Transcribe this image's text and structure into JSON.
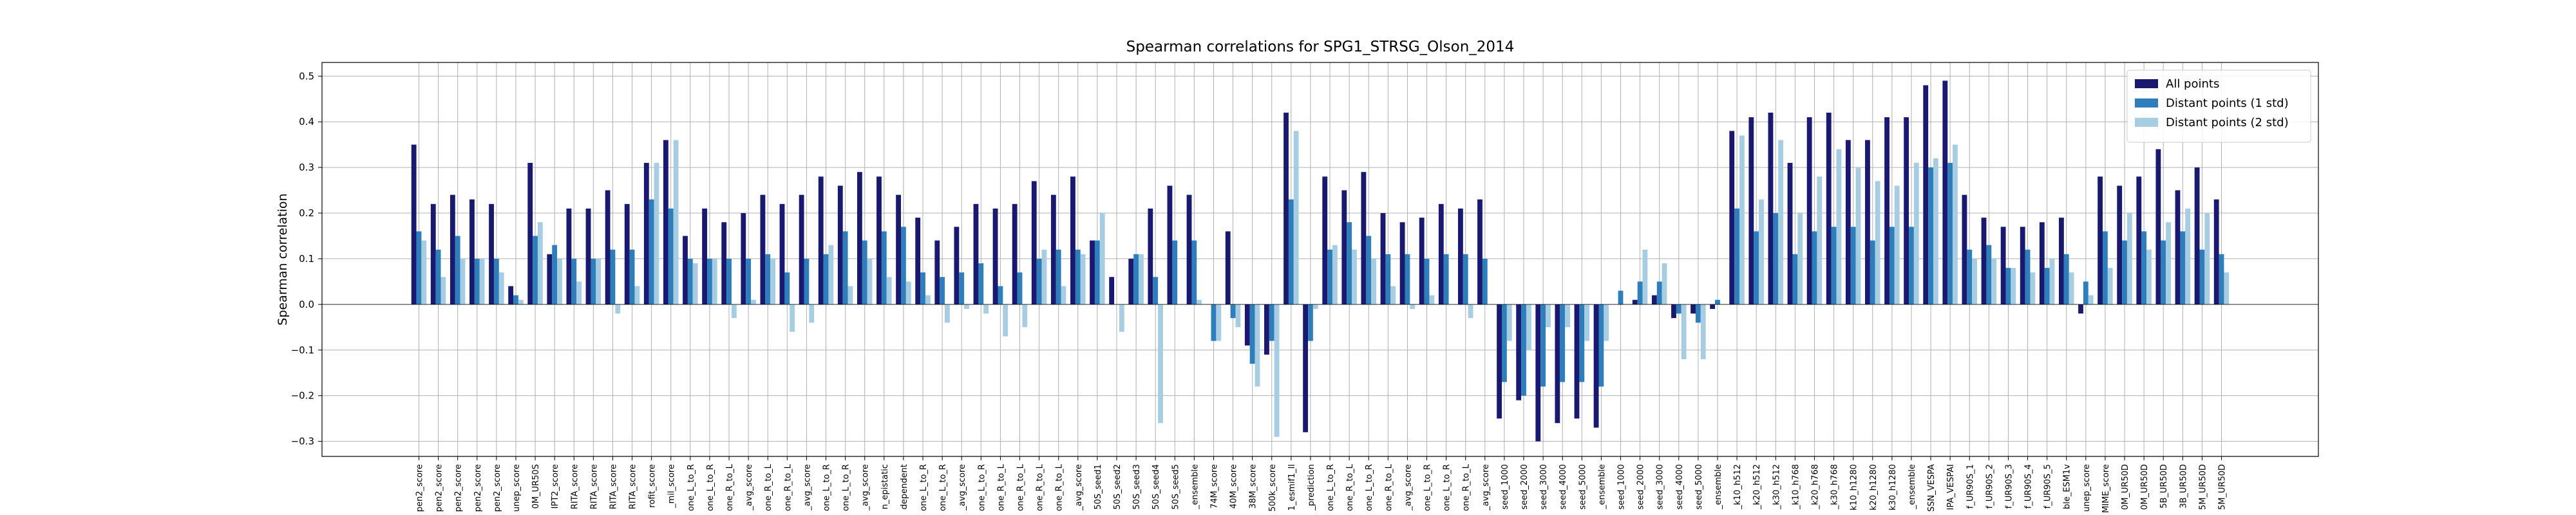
{
  "chart_data": {
    "type": "bar",
    "title": "Spearman correlations for SPG1_STRSG_Olson_2014",
    "ylabel": "Spearman correlation",
    "categories": [
      "pen2_score",
      "pen2_score",
      "pen2_score",
      "pen2_score",
      "pen2_score",
      "unep_score",
      "0M_UR50S",
      "IPT2_score",
      "RITA_score",
      "RITA_score",
      "RITA_score",
      "RITA_score",
      "rofit_score",
      "_mil_score",
      "one_L_to_R",
      "one_L_to_R",
      "one_R_to_L",
      "_avg_score",
      "one_R_to_L",
      "one_R_to_L",
      "_avg_score",
      "one_L_to_R",
      "one_L_to_R",
      "_avg_score",
      "n_epistatic",
      "dependent",
      "one_L_to_R",
      "one_L_to_R",
      "_avg_score",
      "one_L_to_R",
      "one_R_to_L",
      "one_R_to_L",
      "one_R_to_L",
      "one_R_to_L",
      "_avg_score",
      "50S_seed1",
      "50S_seed2",
      "50S_seed3",
      "50S_seed4",
      "50S_seed5",
      "_ensemble",
      "74M_score",
      "40M_score",
      "38M_score",
      "500k_score",
      "1_esmif1_ll",
      "_prediction",
      "one_L_to_R",
      "one_R_to_L",
      "one_L_to_R",
      "one_R_to_L",
      "_avg_score",
      "one_L_to_R",
      "one_L_to_R",
      "one_R_to_L",
      "_avg_score",
      "seed_1000",
      "seed_2000",
      "seed_3000",
      "seed_4000",
      "seed_5000",
      "_ensemble",
      "seed_1000",
      "seed_2000",
      "seed_3000",
      "seed_4000",
      "seed_5000",
      "_ensemble",
      "_k10_h512",
      "_k20_h512",
      "_k30_h512",
      "_k10_h768",
      "_k20_h768",
      "_k30_h768",
      "k10_h1280",
      "k20_h1280",
      "k30_h1280",
      "_ensemble",
      "SSN_VESPA",
      "IPA_VESPAI",
      "f_UR90S_1",
      "f_UR90S_2",
      "f_UR90S_3",
      "f_UR90S_4",
      "f_UR90S_5",
      "ble_ESM1v",
      "unep_score",
      "MIME_score",
      "0M_UR50D",
      "0M_UR50D",
      "5B_UR50D",
      "3B_UR50D",
      "5M_UR50D",
      "5M_UR50D"
    ],
    "series": [
      {
        "name": "All points",
        "color": "#191970",
        "values": [
          0.35,
          0.22,
          0.24,
          0.23,
          0.22,
          0.04,
          0.31,
          0.11,
          0.21,
          0.21,
          0.25,
          0.22,
          0.31,
          0.36,
          0.15,
          0.21,
          0.18,
          0.2,
          0.24,
          0.22,
          0.24,
          0.28,
          0.26,
          0.29,
          0.28,
          0.24,
          0.19,
          0.14,
          0.17,
          0.22,
          0.21,
          0.22,
          0.27,
          0.24,
          0.28,
          0.14,
          0.06,
          0.1,
          0.21,
          0.26,
          0.24,
          0.0,
          0.16,
          -0.09,
          -0.11,
          0.42,
          -0.28,
          0.28,
          0.25,
          0.29,
          0.2,
          0.18,
          0.19,
          0.22,
          0.21,
          0.23,
          -0.25,
          -0.21,
          -0.3,
          -0.26,
          -0.25,
          -0.27,
          0.0,
          0.01,
          0.02,
          -0.03,
          -0.02,
          -0.01,
          0.38,
          0.41,
          0.42,
          0.31,
          0.41,
          0.42,
          0.36,
          0.36,
          0.41,
          0.41,
          0.48,
          0.49,
          0.24,
          0.19,
          0.17,
          0.17,
          0.18,
          0.19,
          -0.02,
          0.28,
          0.26,
          0.28,
          0.34,
          0.25,
          0.3,
          0.23
        ]
      },
      {
        "name": "Distant points (1 std)",
        "color": "#2e7ebc",
        "values": [
          0.16,
          0.12,
          0.15,
          0.1,
          0.1,
          0.02,
          0.15,
          0.13,
          0.1,
          0.1,
          0.12,
          0.12,
          0.23,
          0.21,
          0.1,
          0.1,
          0.1,
          0.1,
          0.11,
          0.07,
          0.1,
          0.11,
          0.16,
          0.14,
          0.16,
          0.17,
          0.07,
          0.06,
          0.07,
          0.09,
          0.04,
          0.07,
          0.1,
          0.12,
          0.12,
          0.14,
          0.0,
          0.11,
          0.06,
          0.14,
          0.14,
          -0.08,
          -0.03,
          -0.13,
          -0.08,
          0.23,
          -0.08,
          0.12,
          0.18,
          0.15,
          0.11,
          0.11,
          0.1,
          0.11,
          0.11,
          0.1,
          -0.17,
          -0.2,
          -0.18,
          -0.17,
          -0.17,
          -0.18,
          0.03,
          0.05,
          0.05,
          -0.02,
          -0.04,
          0.01,
          0.21,
          0.16,
          0.2,
          0.11,
          0.16,
          0.17,
          0.17,
          0.14,
          0.17,
          0.17,
          0.3,
          0.31,
          0.12,
          0.13,
          0.08,
          0.12,
          0.08,
          0.11,
          0.05,
          0.16,
          0.14,
          0.16,
          0.14,
          0.16,
          0.12,
          0.11
        ]
      },
      {
        "name": "Distant points (2 std)",
        "color": "#a6cde2",
        "values": [
          0.14,
          0.06,
          0.1,
          0.1,
          0.07,
          0.01,
          0.18,
          0.1,
          0.05,
          0.1,
          -0.02,
          0.04,
          0.31,
          0.36,
          0.09,
          0.1,
          -0.03,
          0.01,
          0.1,
          -0.06,
          -0.04,
          0.13,
          0.04,
          0.1,
          0.06,
          0.05,
          0.02,
          -0.04,
          -0.01,
          -0.02,
          -0.07,
          -0.05,
          0.12,
          0.04,
          0.11,
          0.2,
          -0.06,
          0.11,
          -0.26,
          0.0,
          0.01,
          -0.08,
          -0.05,
          -0.18,
          -0.29,
          0.38,
          -0.01,
          0.13,
          0.12,
          0.1,
          0.04,
          -0.01,
          0.02,
          0.0,
          -0.03,
          0.0,
          -0.08,
          -0.1,
          -0.05,
          -0.05,
          -0.08,
          -0.08,
          0.0,
          0.12,
          0.09,
          -0.12,
          -0.12,
          0.0,
          0.37,
          0.23,
          0.36,
          0.2,
          0.28,
          0.34,
          0.3,
          0.27,
          0.26,
          0.31,
          0.32,
          0.35,
          0.1,
          0.1,
          0.08,
          0.07,
          0.1,
          0.07,
          0.02,
          0.08,
          0.2,
          0.12,
          0.18,
          0.21,
          0.2,
          0.07
        ]
      }
    ],
    "ylim": [
      -0.333,
      0.53
    ],
    "yticks": [
      {
        "value": -0.3,
        "label": "−0.3"
      },
      {
        "value": -0.2,
        "label": "−0.2"
      },
      {
        "value": -0.1,
        "label": "−0.1"
      },
      {
        "value": 0,
        "label": "0.0"
      },
      0.1,
      0.2,
      0.3,
      0.4,
      0.5
    ],
    "grid": true,
    "legend": "upper right"
  }
}
